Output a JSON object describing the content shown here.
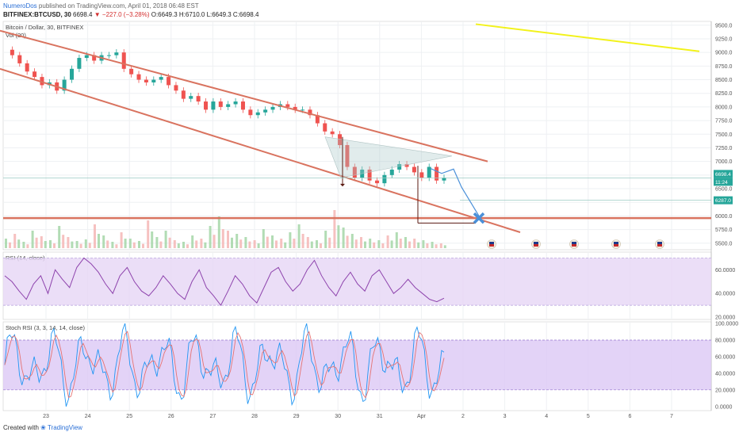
{
  "header": {
    "author": "NumeroDos",
    "published_text": "published on TradingView.com, April 01, 2018 06:48 EST",
    "symbol": "BITFINEX:BTCUSD, 30",
    "last": "6698.4",
    "arrow": "▼",
    "change": "−227.0 (−3.28%)",
    "ohlc": "O:6649.3 H:6710.0 L:6649.3 C:6698.4"
  },
  "footer": {
    "created_with": "Created with",
    "brand": "TradingView"
  },
  "colors": {
    "up": "#26a69a",
    "down": "#ef5350",
    "channel": "#d9735f",
    "yellow": "#f2f21b",
    "projection": "#4a90d9",
    "rsi": "#8e44ad",
    "rsi_band": "#e6d6f5",
    "stoch_k": "#2196f3",
    "stoch_d": "#e57373",
    "stoch_band": "#dcc8f5"
  },
  "chart_data": [
    {
      "type": "line",
      "title": "Bitcoin / Dollar, 30, BITFINEX",
      "volume_label": "Vol (20)",
      "x_ticks": [
        "23",
        "24",
        "25",
        "26",
        "27",
        "28",
        "29",
        "30",
        "31",
        "Apr",
        "2",
        "3",
        "4",
        "5",
        "6",
        "7"
      ],
      "y_ticks": [
        5500,
        5750,
        6000,
        6250,
        6500,
        6750,
        7000,
        7250,
        7500,
        7750,
        8000,
        8250,
        8500,
        8750,
        9000,
        9250,
        9500
      ],
      "ylim": [
        5380,
        9570
      ],
      "series": [
        {
          "values": [
            9050,
            8950,
            8800,
            8650,
            8550,
            8400,
            8450,
            8300,
            8500,
            8700,
            8900,
            8950,
            8850,
            8950,
            8950,
            9000,
            8700,
            8600,
            8500,
            8450,
            8500,
            8550,
            8400,
            8300,
            8150,
            8200,
            8100,
            7950,
            8100,
            8000,
            8050,
            8100,
            7950,
            7850,
            7900,
            7950,
            8000,
            8050,
            8000,
            7950,
            7950,
            7850,
            7700,
            7550,
            7500,
            7300,
            6900,
            6700,
            6850,
            6650,
            6600,
            6750,
            6850,
            6950,
            6900,
            6800,
            6700,
            6900,
            6650,
            6698
          ]
        }
      ],
      "price_labels": [
        "6698.4",
        "11:24",
        "6287.0"
      ],
      "channel_upper": [
        [
          0,
          9400
        ],
        [
          615,
          7000
        ]
      ],
      "channel_lower": [
        [
          0,
          8700
        ],
        [
          656,
          5700
        ]
      ],
      "horizontal_support": 5960,
      "yellow_line": [
        [
          600,
          9520
        ],
        [
          882,
          9020
        ]
      ],
      "triangle": [
        [
          410,
          7450
        ],
        [
          570,
          7100
        ],
        [
          430,
          6700
        ]
      ],
      "projection_path": [
        [
          543,
          6870
        ],
        [
          557,
          6780
        ],
        [
          572,
          6860
        ],
        [
          582,
          6530
        ],
        [
          604,
          6000
        ]
      ],
      "projection_target": [
        604,
        5960
      ],
      "volume_bars": [
        12,
        18,
        8,
        22,
        15,
        10,
        28,
        14,
        9,
        11,
        30,
        16,
        8,
        20,
        12,
        9,
        35,
        14,
        22,
        10,
        8,
        16,
        12,
        28,
        40,
        22,
        18,
        14,
        10,
        24,
        16,
        12,
        20,
        30,
        14,
        10,
        22,
        48,
        26,
        18,
        14,
        12,
        10,
        16,
        20,
        14,
        12,
        10,
        8,
        6
      ]
    },
    {
      "type": "line",
      "title": "RSI (14, close)",
      "y_ticks": [
        "60.0000",
        "40.0000",
        "20.0000"
      ],
      "band": [
        30,
        70
      ],
      "ylim": [
        18,
        75
      ],
      "values": [
        55,
        50,
        42,
        35,
        48,
        55,
        40,
        60,
        52,
        45,
        62,
        70,
        65,
        58,
        48,
        40,
        55,
        62,
        50,
        42,
        38,
        45,
        55,
        48,
        40,
        35,
        50,
        60,
        45,
        38,
        30,
        42,
        55,
        48,
        38,
        32,
        45,
        58,
        62,
        50,
        42,
        48,
        60,
        68,
        55,
        45,
        38,
        50,
        58,
        48,
        42,
        55,
        60,
        50,
        40,
        45,
        52,
        45,
        40,
        35,
        33,
        36
      ]
    },
    {
      "type": "line",
      "title": "Stoch RSI (3, 3, 14, 14, close)",
      "y_ticks": [
        "100.0000",
        "80.0000",
        "60.0000",
        "40.0000",
        "20.0000",
        "0.0000"
      ],
      "band": [
        20,
        80
      ],
      "ylim": [
        -5,
        102
      ]
    }
  ]
}
